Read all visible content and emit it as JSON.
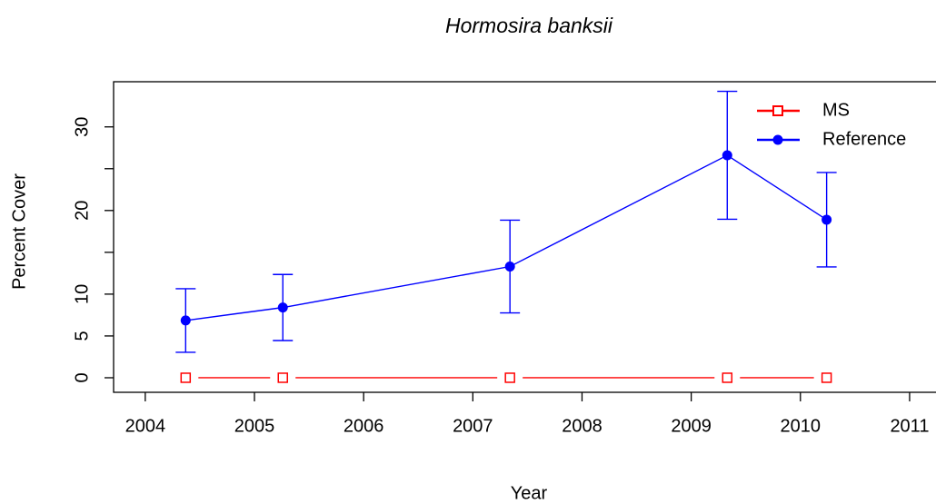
{
  "chart_data": {
    "type": "line",
    "title": "Hormosira banksii",
    "xlabel": "Year",
    "ylabel": "Percent Cover",
    "xlim": [
      2003.71,
      2011.3
    ],
    "xticks": [
      2004,
      2005,
      2006,
      2007,
      2008,
      2009,
      2010,
      2011
    ],
    "ylim": [
      -1.74,
      35.4
    ],
    "yticks": [
      0,
      5,
      10,
      {
        "value": 15,
        "label": null
      },
      20,
      {
        "value": 25,
        "label": null
      },
      30
    ],
    "legend": "top right",
    "series": [
      {
        "name": "MS",
        "color": "#ff0000",
        "marker": "open-square",
        "x": [
          2004.37,
          2005.26,
          2007.34,
          2009.33,
          2010.24
        ],
        "values": [
          0,
          0,
          0,
          0,
          0
        ]
      },
      {
        "name": "Reference",
        "color": "#0000ff",
        "marker": "filled-circle",
        "x": [
          2004.37,
          2005.26,
          2007.34,
          2009.33,
          2010.24
        ],
        "values": [
          6.85,
          8.4,
          13.3,
          26.6,
          18.9
        ],
        "errors": [
          3.8,
          3.95,
          5.55,
          7.65,
          5.65
        ]
      }
    ]
  }
}
